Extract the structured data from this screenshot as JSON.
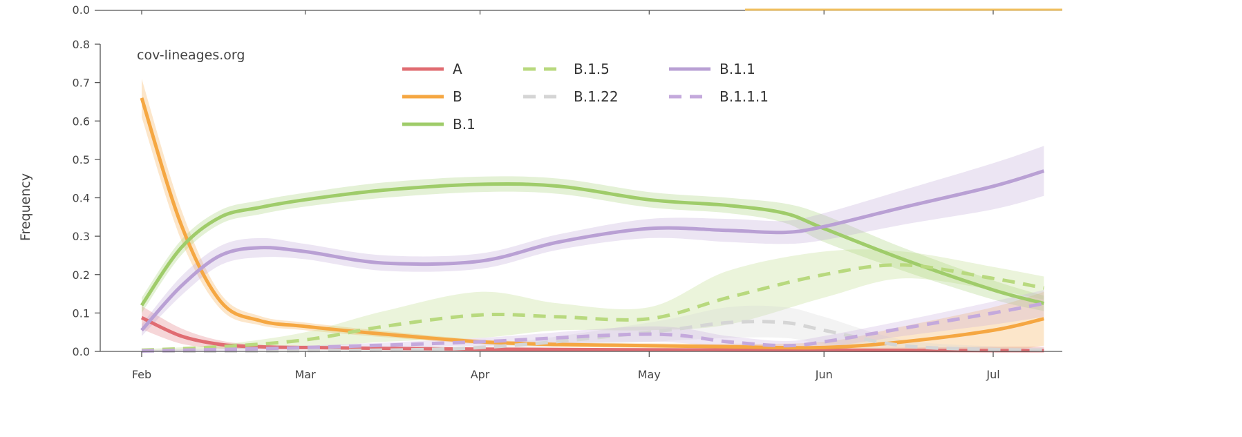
{
  "chart_data": {
    "type": "line",
    "source_label": "cov-lineages.org",
    "ylabel": "Frequency",
    "xlabel": "",
    "ylim": [
      0,
      0.8
    ],
    "yticks": [
      0.0,
      0.1,
      0.2,
      0.3,
      0.4,
      0.5,
      0.6,
      0.7,
      0.8
    ],
    "ytick_labels": [
      "0.0",
      "0.1",
      "0.2",
      "0.3",
      "0.4",
      "0.5",
      "0.6",
      "0.7",
      "0.8"
    ],
    "xlim": [
      "2020-02-01",
      "2020-07-10"
    ],
    "xticks": [
      "2020-02-01",
      "2020-03-01",
      "2020-04-01",
      "2020-05-01",
      "2020-06-01",
      "2020-07-01"
    ],
    "xtick_labels": [
      "Feb",
      "Mar",
      "Apr",
      "May",
      "Jun",
      "Jul"
    ],
    "top_panel": {
      "ytick_label": "0.0",
      "line_color": "#f0c060",
      "line_from": "2020-05-18"
    },
    "legend": {
      "placement": "top-center",
      "columns": 3
    },
    "series": [
      {
        "name": "A",
        "color": "#e06c72",
        "dash": "solid",
        "x": [
          "2020-02-01",
          "2020-02-08",
          "2020-02-15",
          "2020-02-22",
          "2020-03-01",
          "2020-03-15",
          "2020-04-01",
          "2020-05-01",
          "2020-06-01",
          "2020-07-01",
          "2020-07-10"
        ],
        "y": [
          0.088,
          0.04,
          0.018,
          0.012,
          0.01,
          0.008,
          0.006,
          0.004,
          0.003,
          0.002,
          0.002
        ],
        "band": [
          0.03,
          0.02,
          0.01,
          0.005,
          0.004,
          0.004,
          0.004,
          0.004,
          0.005,
          0.01,
          0.01
        ]
      },
      {
        "name": "B",
        "color": "#f5a742",
        "dash": "solid",
        "x": [
          "2020-02-01",
          "2020-02-08",
          "2020-02-15",
          "2020-02-22",
          "2020-03-01",
          "2020-03-15",
          "2020-04-01",
          "2020-04-15",
          "2020-05-01",
          "2020-05-15",
          "2020-06-01",
          "2020-06-15",
          "2020-07-01",
          "2020-07-10"
        ],
        "y": [
          0.66,
          0.33,
          0.13,
          0.08,
          0.065,
          0.045,
          0.025,
          0.018,
          0.015,
          0.012,
          0.01,
          0.025,
          0.055,
          0.085
        ],
        "band": [
          0.05,
          0.04,
          0.02,
          0.012,
          0.01,
          0.008,
          0.006,
          0.006,
          0.006,
          0.008,
          0.015,
          0.04,
          0.06,
          0.07
        ]
      },
      {
        "name": "B.1",
        "color": "#9fcc6a",
        "dash": "solid",
        "x": [
          "2020-02-01",
          "2020-02-08",
          "2020-02-15",
          "2020-02-22",
          "2020-03-01",
          "2020-03-15",
          "2020-04-01",
          "2020-04-15",
          "2020-05-01",
          "2020-05-15",
          "2020-05-25",
          "2020-06-01",
          "2020-06-15",
          "2020-07-01",
          "2020-07-10"
        ],
        "y": [
          0.12,
          0.27,
          0.35,
          0.375,
          0.395,
          0.42,
          0.435,
          0.43,
          0.395,
          0.38,
          0.36,
          0.32,
          0.24,
          0.16,
          0.125
        ],
        "band": [
          0.02,
          0.02,
          0.018,
          0.018,
          0.018,
          0.02,
          0.02,
          0.02,
          0.02,
          0.02,
          0.025,
          0.035,
          0.03,
          0.025,
          0.02
        ]
      },
      {
        "name": "B.1.5",
        "color": "#b8d97e",
        "dash": "dashed",
        "x": [
          "2020-02-01",
          "2020-02-15",
          "2020-03-01",
          "2020-03-15",
          "2020-04-01",
          "2020-04-15",
          "2020-05-01",
          "2020-05-15",
          "2020-06-01",
          "2020-06-15",
          "2020-07-01",
          "2020-07-10"
        ],
        "y": [
          0.003,
          0.012,
          0.03,
          0.065,
          0.095,
          0.09,
          0.085,
          0.14,
          0.2,
          0.225,
          0.19,
          0.165
        ],
        "band": [
          0.003,
          0.006,
          0.02,
          0.04,
          0.06,
          0.035,
          0.03,
          0.07,
          0.06,
          0.035,
          0.03,
          0.03
        ]
      },
      {
        "name": "B.1.22",
        "color": "#d5d5d5",
        "dash": "dashed",
        "x": [
          "2020-02-01",
          "2020-03-01",
          "2020-04-01",
          "2020-05-01",
          "2020-05-15",
          "2020-05-25",
          "2020-06-01",
          "2020-06-15",
          "2020-07-01",
          "2020-07-10"
        ],
        "y": [
          0.001,
          0.002,
          0.01,
          0.05,
          0.075,
          0.075,
          0.055,
          0.015,
          0.005,
          0.003
        ],
        "band": [
          0.002,
          0.002,
          0.006,
          0.025,
          0.04,
          0.04,
          0.035,
          0.015,
          0.008,
          0.006
        ]
      },
      {
        "name": "B.1.1",
        "color": "#b9a0d4",
        "dash": "solid",
        "x": [
          "2020-02-01",
          "2020-02-08",
          "2020-02-15",
          "2020-02-22",
          "2020-03-01",
          "2020-03-15",
          "2020-04-01",
          "2020-04-15",
          "2020-05-01",
          "2020-05-15",
          "2020-05-25",
          "2020-06-01",
          "2020-06-15",
          "2020-07-01",
          "2020-07-10"
        ],
        "y": [
          0.055,
          0.17,
          0.25,
          0.27,
          0.26,
          0.23,
          0.235,
          0.285,
          0.32,
          0.315,
          0.31,
          0.325,
          0.375,
          0.43,
          0.47
        ],
        "band": [
          0.015,
          0.025,
          0.025,
          0.025,
          0.02,
          0.02,
          0.02,
          0.02,
          0.025,
          0.03,
          0.03,
          0.035,
          0.045,
          0.06,
          0.065
        ]
      },
      {
        "name": "B.1.1.1",
        "color": "#c4a9dc",
        "dash": "dashed",
        "x": [
          "2020-02-01",
          "2020-03-01",
          "2020-04-01",
          "2020-05-01",
          "2020-05-15",
          "2020-05-25",
          "2020-06-01",
          "2020-06-15",
          "2020-07-01",
          "2020-07-10"
        ],
        "y": [
          0.001,
          0.01,
          0.025,
          0.045,
          0.025,
          0.015,
          0.025,
          0.06,
          0.1,
          0.125
        ],
        "band": [
          0.002,
          0.005,
          0.01,
          0.02,
          0.015,
          0.012,
          0.015,
          0.02,
          0.03,
          0.035
        ]
      }
    ]
  }
}
